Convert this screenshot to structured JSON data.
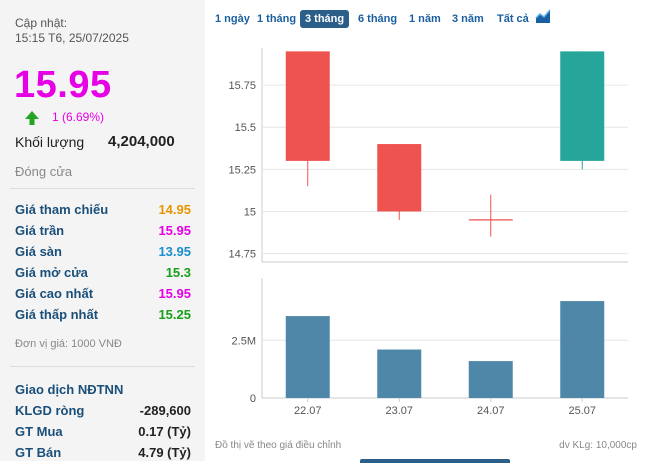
{
  "header": {
    "update_label": "Cập nhật:",
    "update_time": "15:15 T6, 25/07/2025"
  },
  "quote": {
    "price": "15.95",
    "change": "1 (6.69%)",
    "volume_label": "Khối lượng",
    "volume_value": "4,204,000",
    "status": "Đóng cửa"
  },
  "stats": [
    {
      "label": "Giá tham chiếu",
      "value": "14.95",
      "color": "#e69500"
    },
    {
      "label": "Giá trần",
      "value": "15.95",
      "color": "#e600e6"
    },
    {
      "label": "Giá sàn",
      "value": "13.95",
      "color": "#1a8fc9"
    },
    {
      "label": "Giá mở cửa",
      "value": "15.3",
      "color": "#18a018"
    },
    {
      "label": "Giá cao nhất",
      "value": "15.95",
      "color": "#e600e6"
    },
    {
      "label": "Giá thấp nhất",
      "value": "15.25",
      "color": "#18a018"
    }
  ],
  "unit_note": "Đơn vị giá: 1000 VNĐ",
  "foreign": {
    "title": "Giao dịch NĐTNN",
    "rows": [
      {
        "label": "KLGD ròng",
        "value": "-289,600"
      },
      {
        "label": "GT Mua",
        "value": "0.17 (Tỷ)"
      },
      {
        "label": "GT Bán",
        "value": "4.79 (Tỷ)"
      }
    ]
  },
  "tabs": [
    "1 ngày",
    "1 tháng",
    "3 tháng",
    "6 tháng",
    "1 năm",
    "3 năm",
    "Tất cả"
  ],
  "active_tab": 2,
  "footnotes": {
    "left": "Đồ thị vẽ theo giá điều chỉnh",
    "right": "dv KLg: 10,000cp"
  },
  "colors": {
    "up": "#26a69a",
    "down": "#ef5350",
    "volume": "#4f87a8"
  },
  "chart_data": {
    "type": "candlestick",
    "categories": [
      "22.07",
      "23.07",
      "24.07",
      "25.07"
    ],
    "candles": [
      {
        "date": "22.07",
        "open": 15.95,
        "high": 15.95,
        "low": 15.15,
        "close": 15.3
      },
      {
        "date": "23.07",
        "open": 15.4,
        "high": 15.4,
        "low": 14.95,
        "close": 15.0
      },
      {
        "date": "24.07",
        "open": 14.95,
        "high": 15.1,
        "low": 14.85,
        "close": 14.95
      },
      {
        "date": "25.07",
        "open": 15.3,
        "high": 15.95,
        "low": 15.25,
        "close": 15.95
      }
    ],
    "price_ticks": [
      "14.75",
      "15",
      "15.25",
      "15.5",
      "15.75"
    ],
    "price_tick_values": [
      14.75,
      15,
      15.25,
      15.5,
      15.75
    ],
    "price_range": [
      14.7,
      15.97
    ],
    "volume": [
      3.55,
      2.1,
      1.6,
      4.2
    ],
    "volume_ticks": [
      "0",
      "2.5M"
    ],
    "volume_tick_values": [
      0,
      2.5
    ],
    "volume_range": [
      0,
      5.2
    ]
  }
}
